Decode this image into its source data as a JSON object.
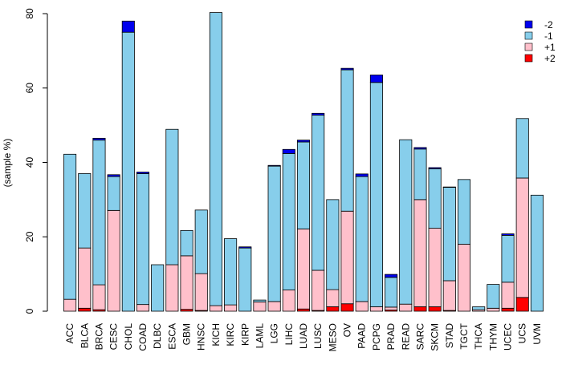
{
  "chart_data": {
    "type": "bar",
    "stacked": true,
    "title": "",
    "xlabel": "",
    "ylabel": "(sample %)",
    "ylim": [
      0,
      80
    ],
    "yticks": [
      0,
      20,
      40,
      60,
      80
    ],
    "legend_position": "top-right",
    "categories": [
      "ACC",
      "BLCA",
      "BRCA",
      "CESC",
      "CHOL",
      "COAD",
      "DLBC",
      "ESCA",
      "GBM",
      "HNSC",
      "KICH",
      "KIRC",
      "KIRP",
      "LAML",
      "LGG",
      "LIHC",
      "LUAD",
      "LUSC",
      "MESO",
      "OV",
      "PAAD",
      "PCPG",
      "PRAD",
      "READ",
      "SARC",
      "SKCM",
      "STAD",
      "TGCT",
      "THCA",
      "THYM",
      "UCEC",
      "UCS",
      "UVM"
    ],
    "series": [
      {
        "name": "+2",
        "color": "#ff0000",
        "values": [
          0,
          0.8,
          0.4,
          0,
          0,
          0,
          0,
          0,
          0.5,
          0.2,
          0,
          0,
          0,
          0,
          0,
          0,
          0.6,
          0.2,
          1.2,
          2.0,
          0,
          0,
          0.3,
          0,
          1.2,
          1.2,
          0.2,
          0,
          0,
          0,
          0.8,
          3.7,
          0
        ]
      },
      {
        "name": "+1",
        "color": "#ffc0cb",
        "values": [
          3.2,
          16.2,
          6.7,
          27.1,
          0,
          1.8,
          0,
          12.5,
          14.4,
          9.9,
          1.5,
          1.7,
          0,
          2.5,
          2.6,
          5.7,
          21.5,
          10.8,
          4.6,
          24.9,
          2.6,
          1.2,
          0.8,
          1.9,
          28.8,
          21.1,
          8.0,
          18.0,
          0.4,
          0.8,
          7.0,
          32.1,
          0
        ]
      },
      {
        "name": "-1",
        "color": "#87ceeb",
        "values": [
          39.0,
          20.0,
          38.9,
          9.1,
          75.0,
          35.2,
          12.5,
          36.4,
          6.8,
          17.1,
          78.8,
          17.8,
          17.0,
          0.5,
          36.4,
          36.7,
          23.4,
          41.7,
          24.2,
          38.0,
          33.6,
          60.3,
          8.0,
          44.2,
          13.6,
          16.0,
          25.1,
          17.4,
          0.8,
          6.4,
          12.6,
          16.0,
          31.2
        ]
      },
      {
        "name": "-2",
        "color": "#0000ee",
        "values": [
          0,
          0,
          0.5,
          0.5,
          3.0,
          0.4,
          0,
          0,
          0,
          0,
          0,
          0,
          0.3,
          0,
          0.2,
          1.1,
          0.5,
          0.5,
          0,
          0.4,
          0.7,
          2.0,
          0.8,
          0,
          0.4,
          0.3,
          0.1,
          0,
          0,
          0,
          0.4,
          0,
          0
        ]
      }
    ],
    "legend": [
      "-2",
      "-1",
      "+1",
      "+2"
    ]
  }
}
